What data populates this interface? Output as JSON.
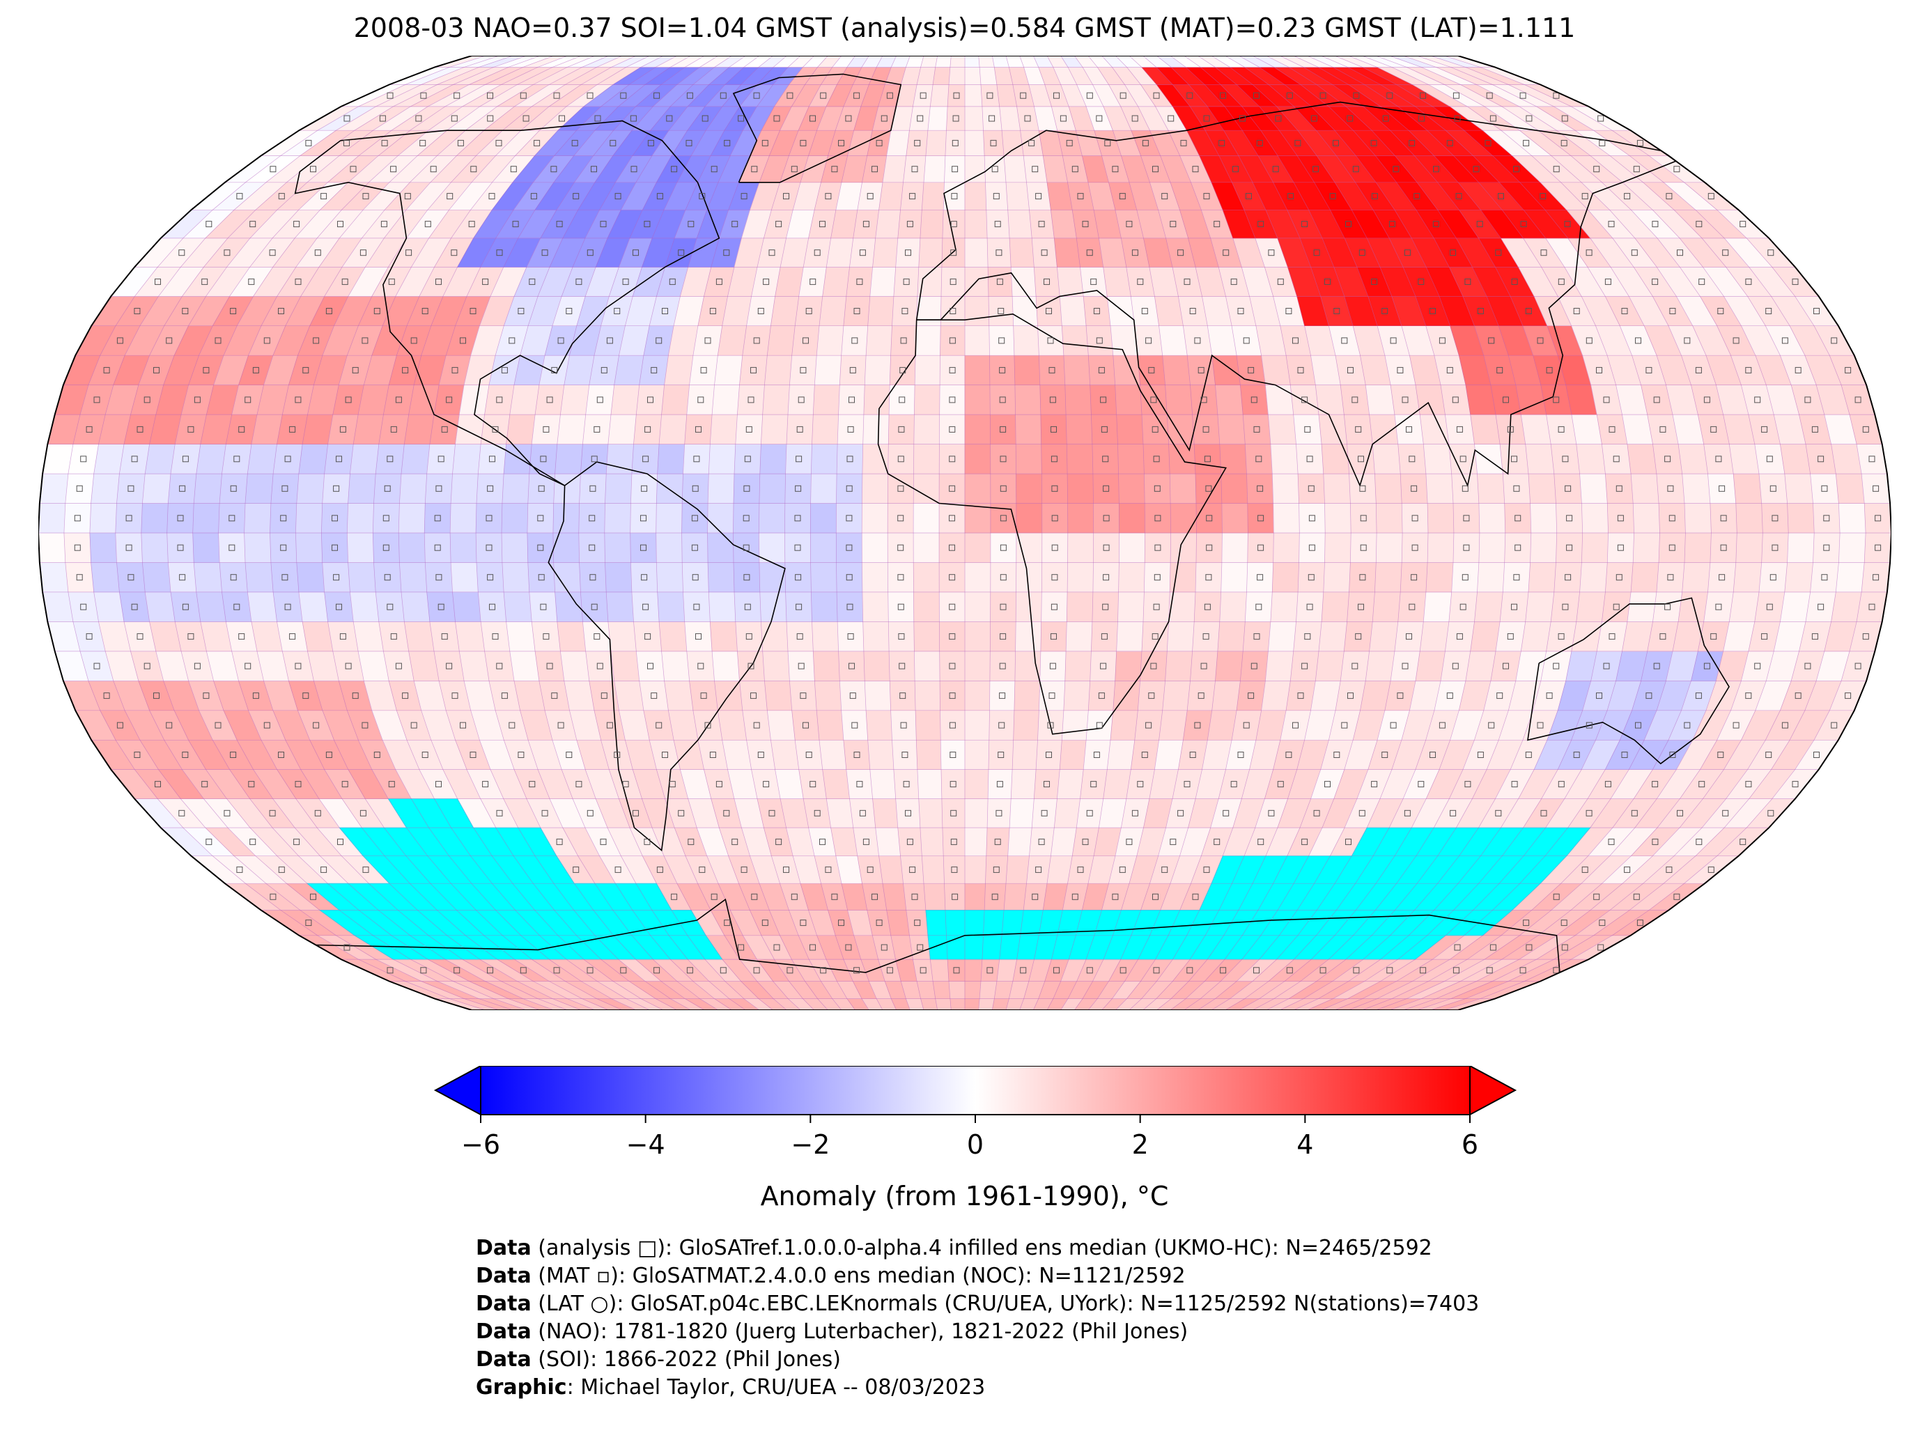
{
  "title": "2008-03 NAO=0.37 SOI=1.04 GMST (analysis)=0.584 GMST (MAT)=0.23 GMST (LAT)=1.111",
  "colors": {
    "cold": "#0000ff",
    "neutral": "#ffffff",
    "warm": "#ff0000",
    "sea_ice": "#00ffff",
    "grid": "#b060c0"
  },
  "colorbar": {
    "min": -6,
    "max": 6,
    "ticks": [
      "−6",
      "−4",
      "−2",
      "0",
      "2",
      "4",
      "6"
    ],
    "tick_values": [
      -6,
      -4,
      -2,
      0,
      2,
      4,
      6
    ],
    "label": "Anomaly (from 1961-1990), °C",
    "extend": "both"
  },
  "credits": [
    {
      "bold": "Data",
      "text": " (analysis □): GloSATref.1.0.0.0-alpha.4 infilled ens median (UKMO-HC): N=2465/2592"
    },
    {
      "bold": "Data",
      "text": " (MAT ▫): GloSATMAT.2.4.0.0 ens median (NOC): N=1121/2592"
    },
    {
      "bold": "Data",
      "text": " (LAT ○): GloSAT.p04c.EBC.LEKnormals (CRU/UEA, UYork): N=1125/2592 N(stations)=7403"
    },
    {
      "bold": "Data",
      "text": " (NAO): 1781-1820 (Juerg Luterbacher), 1821-2022 (Phil Jones)"
    },
    {
      "bold": "Data",
      "text": " (SOI): 1866-2022 (Phil Jones)"
    },
    {
      "bold": "Graphic",
      "text": ": Michael Taylor, CRU/UEA -- 08/03/2023"
    }
  ],
  "map_data": {
    "type": "heatmap",
    "projection": "robinson",
    "grid_resolution_deg": 5,
    "anomaly_regions": [
      {
        "lon": [
          -170,
          180
        ],
        "lat": [
          -60,
          85
        ],
        "value": 0.6
      },
      {
        "lon": [
          -170,
          -20
        ],
        "lat": [
          -15,
          15
        ],
        "value": -0.9
      },
      {
        "lon": [
          -180,
          -100
        ],
        "lat": [
          15,
          40
        ],
        "value": 2.2
      },
      {
        "lon": [
          -180,
          -120
        ],
        "lat": [
          -45,
          -25
        ],
        "value": 1.8
      },
      {
        "lon": [
          -110,
          -50
        ],
        "lat": [
          45,
          85
        ],
        "value": -2.6
      },
      {
        "lon": [
          -95,
          -60
        ],
        "lat": [
          25,
          45
        ],
        "value": -0.8
      },
      {
        "lon": [
          -55,
          -20
        ],
        "lat": [
          60,
          85
        ],
        "value": 1.8
      },
      {
        "lon": [
          0,
          60
        ],
        "lat": [
          0,
          30
        ],
        "value": 2.2
      },
      {
        "lon": [
          20,
          60
        ],
        "lat": [
          45,
          70
        ],
        "value": 1.8
      },
      {
        "lon": [
          60,
          140
        ],
        "lat": [
          50,
          85
        ],
        "value": 5.5
      },
      {
        "lon": [
          70,
          120
        ],
        "lat": [
          35,
          50
        ],
        "value": 5.3
      },
      {
        "lon": [
          100,
          125
        ],
        "lat": [
          20,
          35
        ],
        "value": 3.2
      },
      {
        "lon": [
          120,
          150
        ],
        "lat": [
          -40,
          -20
        ],
        "value": -1.2
      },
      {
        "lon": [
          -180,
          180
        ],
        "lat": [
          -90,
          -60
        ],
        "value": 1.5
      },
      {
        "lon": [
          30,
          60
        ],
        "lat": [
          -35,
          -20
        ],
        "value": 1.2
      }
    ],
    "sea_ice_regions": [
      {
        "lon": [
          -125,
          -110
        ],
        "lat": [
          -60,
          -45
        ]
      },
      {
        "lon": [
          -140,
          -95
        ],
        "lat": [
          -65,
          -50
        ]
      },
      {
        "lon": [
          -160,
          -75
        ],
        "lat": [
          -70,
          -60
        ]
      },
      {
        "lon": [
          -165,
          -70
        ],
        "lat": [
          -75,
          -65
        ]
      },
      {
        "lon": [
          -10,
          60
        ],
        "lat": [
          -75,
          -65
        ]
      },
      {
        "lon": [
          60,
          120
        ],
        "lat": [
          -70,
          -55
        ]
      },
      {
        "lon": [
          90,
          140
        ],
        "lat": [
          -70,
          -50
        ]
      },
      {
        "lon": [
          50,
          130
        ],
        "lat": [
          -75,
          -65
        ]
      }
    ]
  }
}
